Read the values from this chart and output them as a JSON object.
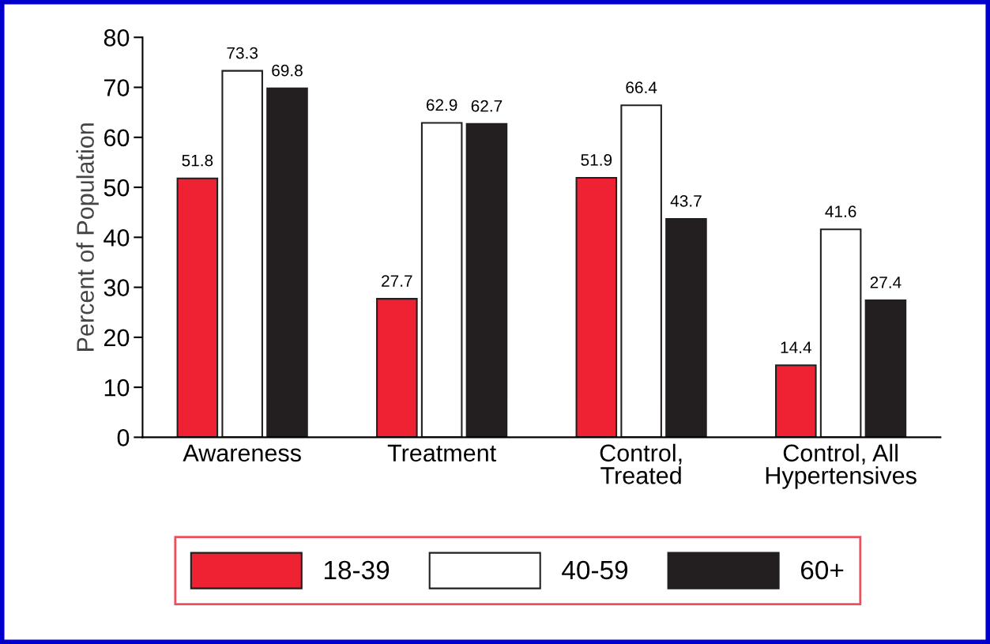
{
  "chart_data": {
    "type": "bar",
    "ylabel": "Percent of Population",
    "categories": [
      "Awareness",
      "Treatment",
      "Control,\nTreated",
      "Control, All\nHypertensives"
    ],
    "series": [
      {
        "name": "18-39",
        "color": "#ee2233",
        "values": [
          51.8,
          27.7,
          51.9,
          14.4
        ]
      },
      {
        "name": "40-59",
        "color": "#ffffff",
        "values": [
          73.3,
          62.9,
          66.4,
          41.6
        ]
      },
      {
        "name": "60+",
        "color": "#231f20",
        "values": [
          69.8,
          62.7,
          43.7,
          27.4
        ]
      }
    ],
    "ylim": [
      0,
      80
    ],
    "yticks": [
      0,
      10,
      20,
      30,
      40,
      50,
      60,
      70,
      80
    ],
    "grid": false,
    "legend": "bottom",
    "data_labels": true
  }
}
